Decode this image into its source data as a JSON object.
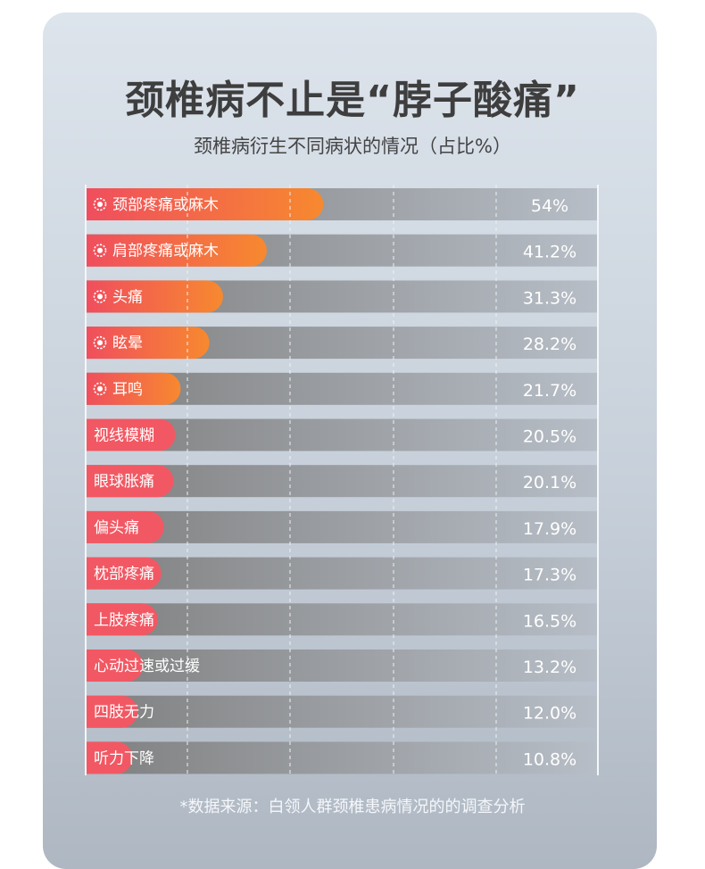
{
  "header": {
    "title": "颈椎病不止是“脖子酸痛”",
    "subtitle": "颈椎病衍生不同病状的情况（占比%）"
  },
  "footer": {
    "source": "*数据来源：白领人群颈椎患病情况的的调查分析"
  },
  "colors": {
    "bar_start": "#f04d5e",
    "bar_end": "#f7892f",
    "bar_plain": "#f25863",
    "row_left": "#7f7f7f",
    "row_right": "#b7bec7",
    "marker": "#ffffff"
  },
  "chart_data": {
    "type": "bar",
    "orientation": "horizontal",
    "unit": "%",
    "title": "",
    "xlabel": "",
    "ylabel": "",
    "categories": [
      "颈部疼痛或麻木",
      "肩部疼痛或麻木",
      "头痛",
      "眩晕",
      "耳鸣",
      "视线模糊",
      "眼球胀痛",
      "偏头痛",
      "枕部疼痛",
      "上肢疼痛",
      "心动过速或过缓",
      "四肢无力",
      "听力下降"
    ],
    "values": [
      54,
      41.2,
      31.3,
      28.2,
      21.7,
      20.5,
      20.1,
      17.9,
      17.3,
      16.5,
      13.2,
      12.0,
      10.8
    ],
    "value_labels": [
      "54%",
      "41.2%",
      "31.3%",
      "28.2%",
      "21.7%",
      "20.5%",
      "20.1%",
      "17.9%",
      "17.3%",
      "16.5%",
      "13.2%",
      "12.0%",
      "10.8%"
    ],
    "highlighted": [
      true,
      true,
      true,
      true,
      true,
      false,
      false,
      false,
      false,
      false,
      false,
      false,
      false
    ],
    "xlim": [
      0,
      100
    ],
    "grid": true
  }
}
